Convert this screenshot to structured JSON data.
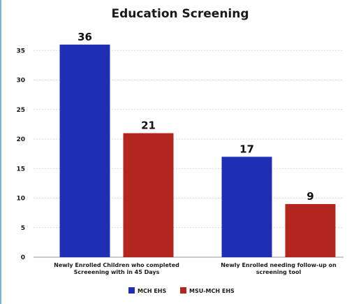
{
  "chart_data": {
    "type": "bar",
    "title": "Education Screening",
    "categories": [
      [
        "Newly Enrolled Children who completed",
        "Screeening with in 45 Days"
      ],
      [
        "Newly Enrolled needing follow-up on",
        "screening tool"
      ]
    ],
    "series": [
      {
        "name": "MCH EHS",
        "values": [
          36,
          17
        ],
        "color": "#1f2fb5"
      },
      {
        "name": "MSU-MCH EHS",
        "values": [
          21,
          9
        ],
        "color": "#b3261e"
      }
    ],
    "ylim": [
      0,
      40
    ],
    "yticks": [
      0,
      5,
      10,
      15,
      20,
      25,
      30,
      35
    ],
    "grid": true,
    "legend": "bottom",
    "xlabel": "",
    "ylabel": ""
  }
}
